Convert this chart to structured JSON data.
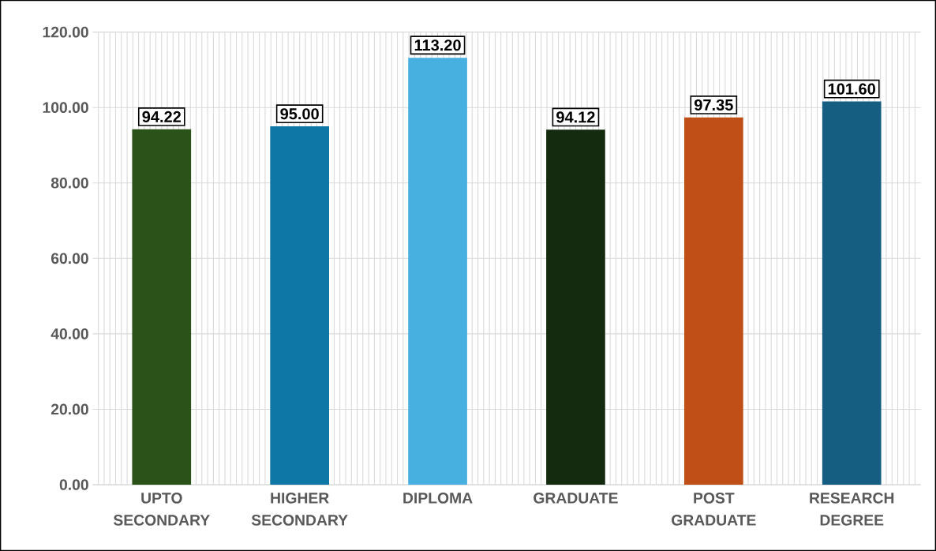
{
  "chart_data": {
    "type": "bar",
    "categories": [
      "UPTO SECONDARY",
      "HIGHER SECONDARY",
      "DIPLOMA",
      "GRADUATE",
      "POST GRADUATE",
      "RESEARCH DEGREE"
    ],
    "values": [
      94.22,
      95.0,
      113.2,
      94.12,
      97.35,
      101.6
    ],
    "colors": [
      "#2a5219",
      "#0e77a5",
      "#47b0e0",
      "#152b10",
      "#c04f17",
      "#155e82"
    ],
    "value_labels": [
      "94.22",
      "95.00",
      "113.20",
      "94.12",
      "97.35",
      "101.60"
    ],
    "ylim": [
      0,
      120
    ],
    "yticks": [
      {
        "value": 0,
        "label": "0.00"
      },
      {
        "value": 20,
        "label": "20.00"
      },
      {
        "value": 40,
        "label": "40.00"
      },
      {
        "value": 60,
        "label": "60.00"
      },
      {
        "value": 80,
        "label": "80.00"
      },
      {
        "value": 100,
        "label": "100.00"
      },
      {
        "value": 120,
        "label": "120.00"
      }
    ],
    "grid": true
  }
}
